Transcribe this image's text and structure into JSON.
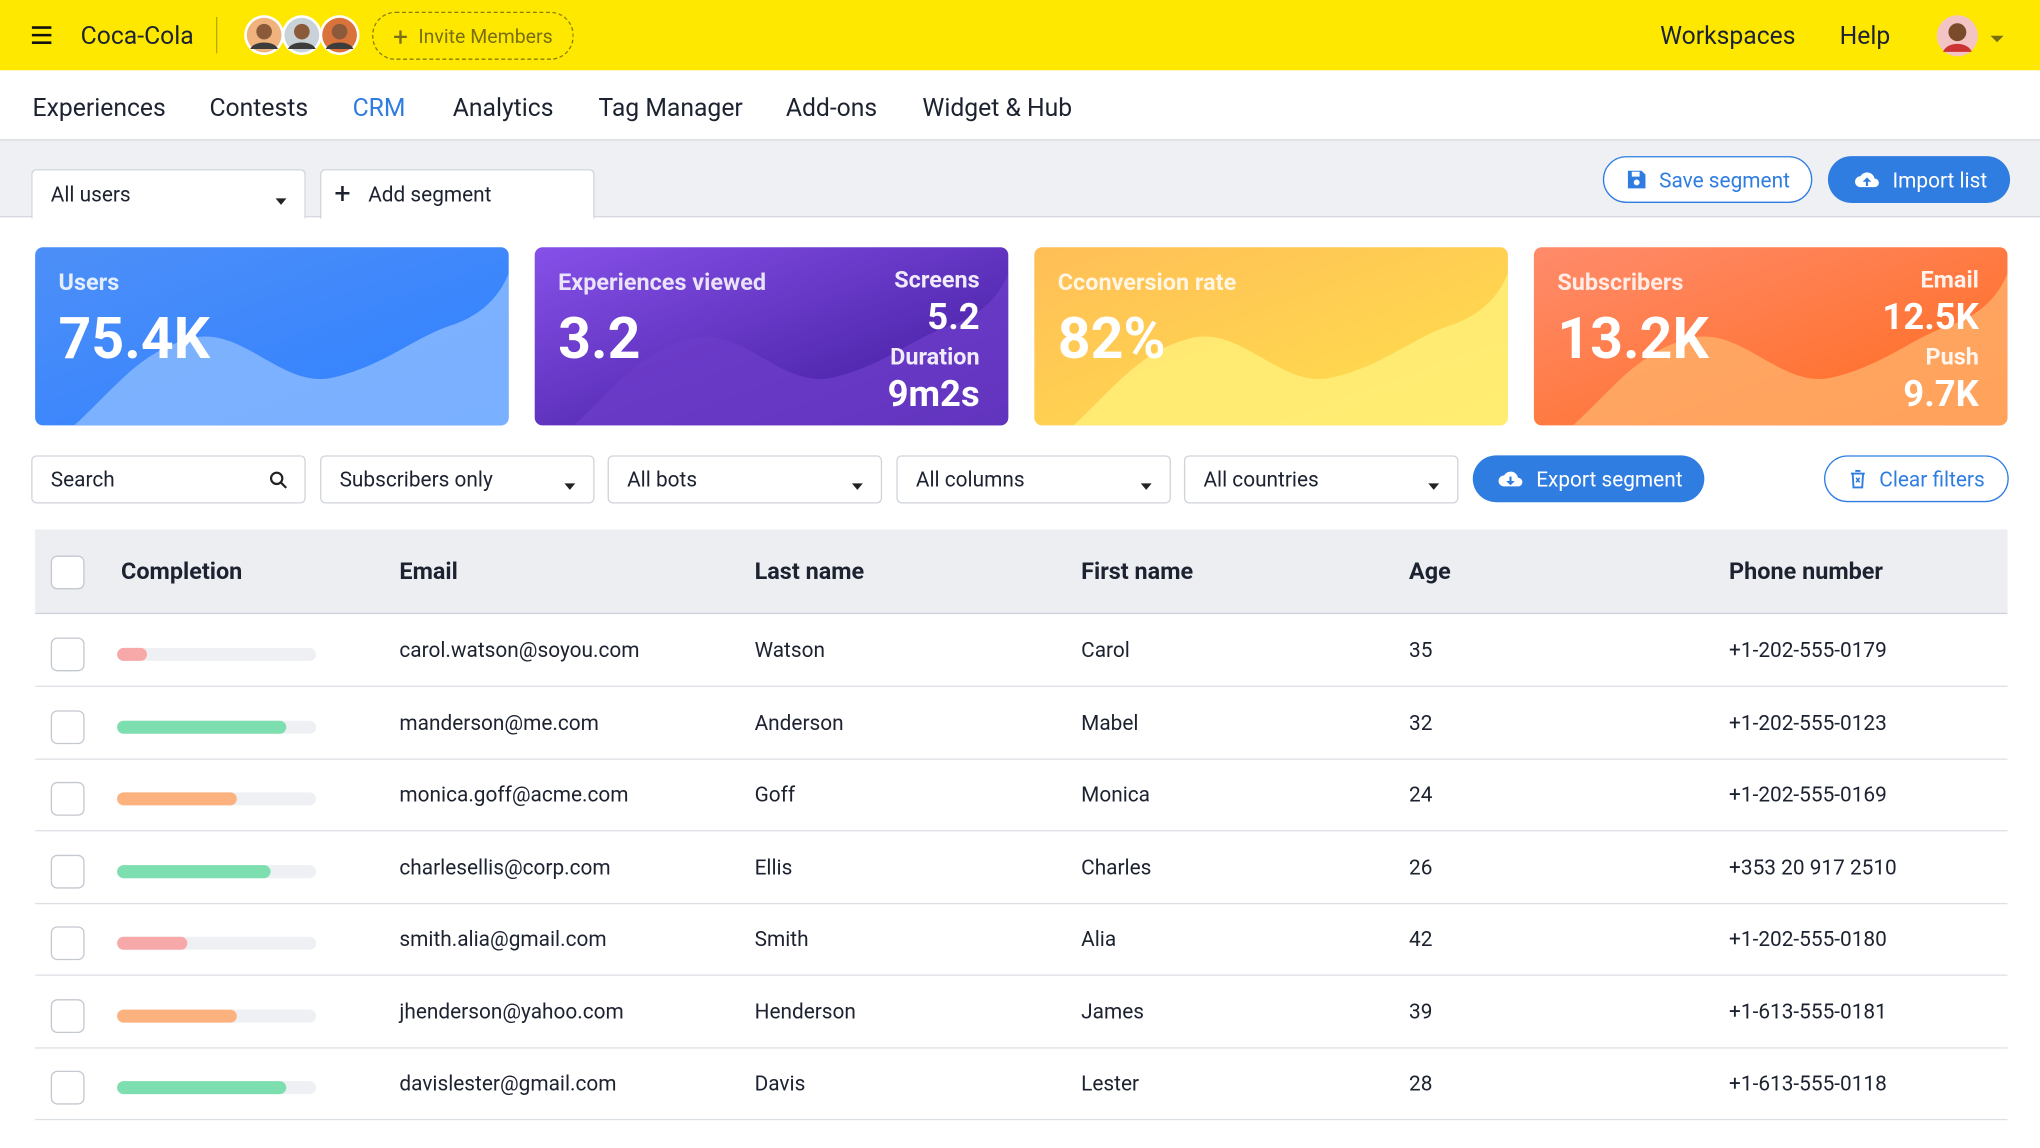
{
  "header": {
    "brand": "Coca-Cola",
    "invite": "Invite Members",
    "links": [
      "Workspaces",
      "Help"
    ]
  },
  "nav": {
    "items": [
      "Experiences",
      "Contests",
      "CRM",
      "Analytics",
      "Tag Manager",
      "Add-ons",
      "Widget & Hub"
    ],
    "active": 2
  },
  "segments": {
    "dropdown": "All users",
    "add": "Add segment",
    "save": "Save segment",
    "import": "Import list"
  },
  "cards": [
    {
      "title": "Users",
      "value": "75.4K",
      "extras": []
    },
    {
      "title": "Experiences viewed",
      "value": "3.2",
      "extras": [
        {
          "label": "Screens",
          "value": "5.2"
        },
        {
          "label": "Duration",
          "value": "9m2s"
        }
      ]
    },
    {
      "title": "Cconversion rate",
      "value": "82%",
      "extras": []
    },
    {
      "title": "Subscribers",
      "value": "13.2K",
      "extras": [
        {
          "label": "Email",
          "value": "12.5K"
        },
        {
          "label": "Push",
          "value": "9.7K"
        }
      ]
    }
  ],
  "filters": {
    "search": "Search",
    "dropdowns": [
      "Subscribers only",
      "All bots",
      "All columns",
      "All countries"
    ],
    "export": "Export segment",
    "clear": "Clear filters"
  },
  "table": {
    "columns": [
      "Completion",
      "Email",
      "Last name",
      "First name",
      "Age",
      "Phone number"
    ],
    "rows": [
      {
        "completion": 15,
        "color": "#f7a9a9",
        "email": "carol.watson@soyou.com",
        "last_name": "Watson",
        "first_name": "Carol",
        "age": 35,
        "phone": "+1-202-555-0179"
      },
      {
        "completion": 85,
        "color": "#7ddfb0",
        "email": "manderson@me.com",
        "last_name": "Anderson",
        "first_name": "Mabel",
        "age": 32,
        "phone": "+1-202-555-0123"
      },
      {
        "completion": 60,
        "color": "#fbb27f",
        "email": "monica.goff@acme.com",
        "last_name": "Goff",
        "first_name": "Monica",
        "age": 24,
        "phone": "+1-202-555-0169"
      },
      {
        "completion": 77,
        "color": "#7ddfb0",
        "email": "charlesellis@corp.com",
        "last_name": "Ellis",
        "first_name": "Charles",
        "age": 26,
        "phone": "+353 20 917 2510"
      },
      {
        "completion": 35,
        "color": "#f7a9a9",
        "email": "smith.alia@gmail.com",
        "last_name": "Smith",
        "first_name": "Alia",
        "age": 42,
        "phone": "+1-202-555-0180"
      },
      {
        "completion": 60,
        "color": "#fbb27f",
        "email": "jhenderson@yahoo.com",
        "last_name": "Henderson",
        "first_name": "James",
        "age": 39,
        "phone": "+1-613-555-0181"
      },
      {
        "completion": 85,
        "color": "#7ddfb0",
        "email": "davislester@gmail.com",
        "last_name": "Davis",
        "first_name": "Lester",
        "age": 28,
        "phone": "+1-613-555-0118"
      }
    ]
  }
}
